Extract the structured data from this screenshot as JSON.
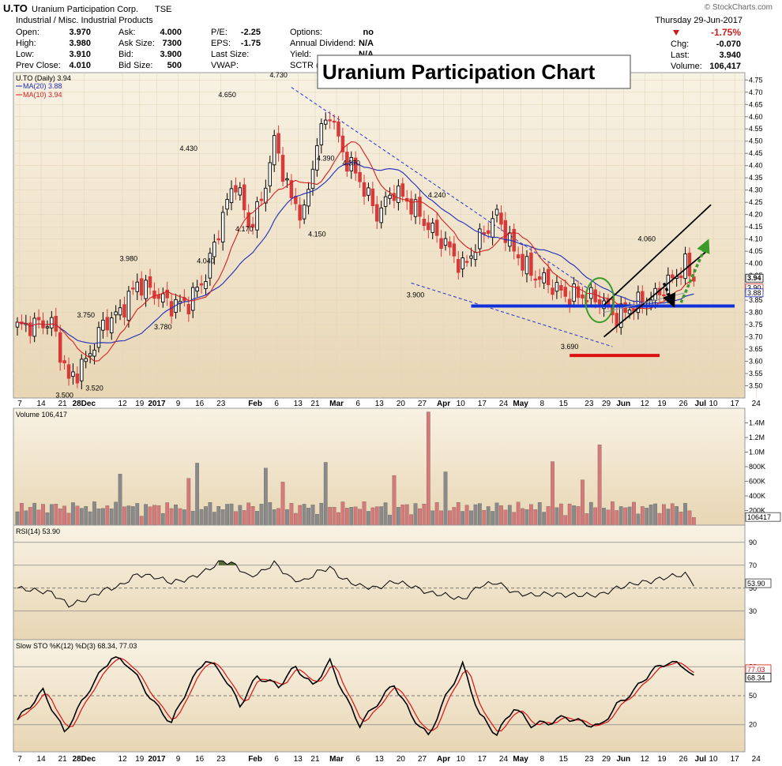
{
  "header": {
    "symbol": "U.TO",
    "company": "Uranium Participation Corp.",
    "exchange": "TSE",
    "sector": "Industrial / Misc. Industrial Products",
    "date_line": "Thursday   29-Jun-2017",
    "watermark": "© StockCharts.com",
    "quote": [
      [
        {
          "label": "Open:",
          "value": "3.970"
        },
        {
          "label": "Ask:",
          "value": "4.000"
        },
        {
          "label": "P/E:",
          "value": "-2.25"
        },
        {
          "label": "Options:",
          "value": "no"
        }
      ],
      [
        {
          "label": "High:",
          "value": "3.980"
        },
        {
          "label": "Ask Size:",
          "value": "7300"
        },
        {
          "label": "EPS:",
          "value": "-1.75"
        },
        {
          "label": "Annual Dividend:",
          "value": "N/A"
        }
      ],
      [
        {
          "label": "Low:",
          "value": "3.910"
        },
        {
          "label": "Bid:",
          "value": "3.900"
        },
        {
          "label": "Last Size:",
          "value": ""
        },
        {
          "label": "Yield:",
          "value": "N/A"
        }
      ],
      [
        {
          "label": "Prev Close:",
          "value": "4.010"
        },
        {
          "label": "Bid Size:",
          "value": "500"
        },
        {
          "label": "VWAP:",
          "value": ""
        },
        {
          "label": "SCTR (",
          "value": ""
        }
      ]
    ],
    "change_pct": "-1.75%",
    "stats": [
      {
        "label": "Chg:",
        "value": "-0.070"
      },
      {
        "label": "Last:",
        "value": "3.940"
      },
      {
        "label": "Volume:",
        "value": "106,417"
      }
    ]
  },
  "overlay_title": "Uranium Participation Chart",
  "colors": {
    "up": "#000000",
    "down": "#d83a3a",
    "ma20": "#1d2bb8",
    "ma10": "#d62020",
    "panel_bg_top": "#f7f0e0",
    "panel_bg_bottom": "#e9d7b5",
    "volume_up": "#8a8a8a",
    "volume_down": "#d97878",
    "support": "#1030d8",
    "channel": "#000000",
    "arrow_up": "#3a9a2a",
    "circle": "#3a9a2a",
    "red_line": "#dd1111"
  },
  "chart_data": [
    {
      "type": "candlestick",
      "title": "U.TO (Daily) 3.94",
      "series": [
        {
          "name": "MA(20) 3.88"
        },
        {
          "name": "MA(10) 3.94"
        }
      ],
      "ylim": [
        3.45,
        4.78
      ],
      "y_ticks": [
        3.5,
        3.55,
        3.6,
        3.65,
        3.7,
        3.75,
        3.8,
        3.85,
        3.9,
        3.95,
        4.0,
        4.05,
        4.1,
        4.15,
        4.2,
        4.25,
        4.3,
        4.35,
        4.4,
        4.45,
        4.5,
        4.55,
        4.6,
        4.65,
        4.7,
        4.75
      ],
      "last_value_labels": [
        "3.94",
        "3.90",
        "3.88"
      ],
      "x_tick_labels": [
        "7",
        "14",
        "21",
        "28Dec",
        "12",
        "19",
        "2017",
        "9",
        "16",
        "23",
        "Feb",
        "6",
        "13",
        "21",
        "Mar",
        "6",
        "13",
        "20",
        "27",
        "Apr",
        "10",
        "17",
        "24",
        "May",
        "8",
        "15",
        "23",
        "29",
        "Jun",
        "12",
        "19",
        "26",
        "Jul",
        "10",
        "17",
        "24"
      ],
      "price_annotations": [
        "3.500",
        "3.520",
        "3.750",
        "3.980",
        "3.780",
        "4.430",
        "4.650",
        "4.040",
        "4.730",
        "4.170",
        "4.390",
        "4.150",
        "4.370",
        "4.240",
        "3.900",
        "3.690",
        "4.060"
      ],
      "knots": [
        [
          0,
          3.74
        ],
        [
          8,
          3.76
        ],
        [
          12,
          3.52
        ],
        [
          16,
          3.6
        ],
        [
          20,
          3.75
        ],
        [
          24,
          3.8
        ],
        [
          28,
          3.92
        ],
        [
          32,
          3.88
        ],
        [
          36,
          3.83
        ],
        [
          40,
          3.84
        ],
        [
          44,
          3.95
        ],
        [
          48,
          4.2
        ],
        [
          51,
          4.34
        ],
        [
          54,
          4.15
        ],
        [
          57,
          4.25
        ],
        [
          60,
          4.5
        ],
        [
          64,
          4.26
        ],
        [
          67,
          4.2
        ],
        [
          70,
          4.5
        ],
        [
          73,
          4.62
        ],
        [
          76,
          4.45
        ],
        [
          80,
          4.34
        ],
        [
          84,
          4.2
        ],
        [
          88,
          4.3
        ],
        [
          92,
          4.24
        ],
        [
          96,
          4.15
        ],
        [
          100,
          4.08
        ],
        [
          104,
          3.98
        ],
        [
          108,
          4.1
        ],
        [
          112,
          4.2
        ],
        [
          116,
          4.05
        ],
        [
          120,
          3.96
        ],
        [
          124,
          3.92
        ],
        [
          128,
          3.87
        ],
        [
          132,
          3.87
        ],
        [
          136,
          3.85
        ],
        [
          140,
          3.78
        ],
        [
          144,
          3.83
        ],
        [
          148,
          3.85
        ],
        [
          152,
          3.92
        ],
        [
          156,
          3.99
        ],
        [
          158,
          3.94
        ]
      ]
    },
    {
      "type": "bar",
      "title": "Volume 106,417",
      "y_ticks": [
        "200K",
        "400K",
        "600K",
        "800K",
        "1.0M",
        "1.2M",
        "1.4M"
      ],
      "last_value_label": "106417",
      "ylim": [
        0,
        1600000
      ],
      "spikes": [
        [
          24,
          700000
        ],
        [
          40,
          640000
        ],
        [
          42,
          850000
        ],
        [
          58,
          780000
        ],
        [
          62,
          590000
        ],
        [
          72,
          860000
        ],
        [
          88,
          680000
        ],
        [
          96,
          1550000
        ],
        [
          100,
          730000
        ],
        [
          125,
          870000
        ],
        [
          136,
          1100000
        ],
        [
          132,
          620000
        ]
      ],
      "base_volume": 230000
    },
    {
      "type": "line",
      "title": "RSI(14) 53.90",
      "ylim": [
        0,
        100
      ],
      "y_ticks": [
        30,
        50,
        70,
        90
      ],
      "last_value_label": "53.90",
      "knots": [
        [
          0,
          50
        ],
        [
          8,
          46
        ],
        [
          12,
          35
        ],
        [
          16,
          40
        ],
        [
          20,
          48
        ],
        [
          24,
          52
        ],
        [
          28,
          62
        ],
        [
          32,
          60
        ],
        [
          36,
          55
        ],
        [
          40,
          58
        ],
        [
          44,
          65
        ],
        [
          48,
          74
        ],
        [
          51,
          70
        ],
        [
          54,
          60
        ],
        [
          57,
          64
        ],
        [
          60,
          72
        ],
        [
          64,
          58
        ],
        [
          67,
          56
        ],
        [
          70,
          64
        ],
        [
          73,
          68
        ],
        [
          76,
          58
        ],
        [
          80,
          52
        ],
        [
          84,
          50
        ],
        [
          88,
          56
        ],
        [
          92,
          52
        ],
        [
          96,
          46
        ],
        [
          100,
          44
        ],
        [
          104,
          40
        ],
        [
          108,
          52
        ],
        [
          112,
          55
        ],
        [
          116,
          46
        ],
        [
          120,
          44
        ],
        [
          124,
          45
        ],
        [
          128,
          44
        ],
        [
          132,
          44
        ],
        [
          136,
          44
        ],
        [
          140,
          50
        ],
        [
          144,
          54
        ],
        [
          148,
          56
        ],
        [
          152,
          60
        ],
        [
          156,
          62
        ],
        [
          158,
          53.9
        ]
      ]
    },
    {
      "type": "line",
      "title": "Slow STO %K(12) %D(3) 68.34, 77.03",
      "series": [
        {
          "name": "%K(12)"
        },
        {
          "name": "%D(3)"
        }
      ],
      "ylim": [
        0,
        100
      ],
      "y_ticks": [
        20,
        50,
        80
      ],
      "last_value_labels": [
        "77.03",
        "68.34"
      ],
      "knots": [
        [
          0,
          25
        ],
        [
          6,
          55
        ],
        [
          11,
          12
        ],
        [
          17,
          58
        ],
        [
          22,
          90
        ],
        [
          26,
          82
        ],
        [
          32,
          42
        ],
        [
          36,
          22
        ],
        [
          40,
          60
        ],
        [
          44,
          88
        ],
        [
          48,
          72
        ],
        [
          52,
          40
        ],
        [
          56,
          70
        ],
        [
          61,
          60
        ],
        [
          65,
          80
        ],
        [
          69,
          60
        ],
        [
          73,
          85
        ],
        [
          77,
          45
        ],
        [
          80,
          20
        ],
        [
          84,
          42
        ],
        [
          88,
          62
        ],
        [
          92,
          30
        ],
        [
          96,
          8
        ],
        [
          100,
          48
        ],
        [
          104,
          82
        ],
        [
          108,
          30
        ],
        [
          112,
          10
        ],
        [
          116,
          38
        ],
        [
          120,
          20
        ],
        [
          124,
          22
        ],
        [
          128,
          28
        ],
        [
          132,
          22
        ],
        [
          136,
          18
        ],
        [
          140,
          40
        ],
        [
          144,
          55
        ],
        [
          148,
          75
        ],
        [
          152,
          85
        ],
        [
          156,
          80
        ],
        [
          158,
          68.34
        ]
      ]
    }
  ]
}
